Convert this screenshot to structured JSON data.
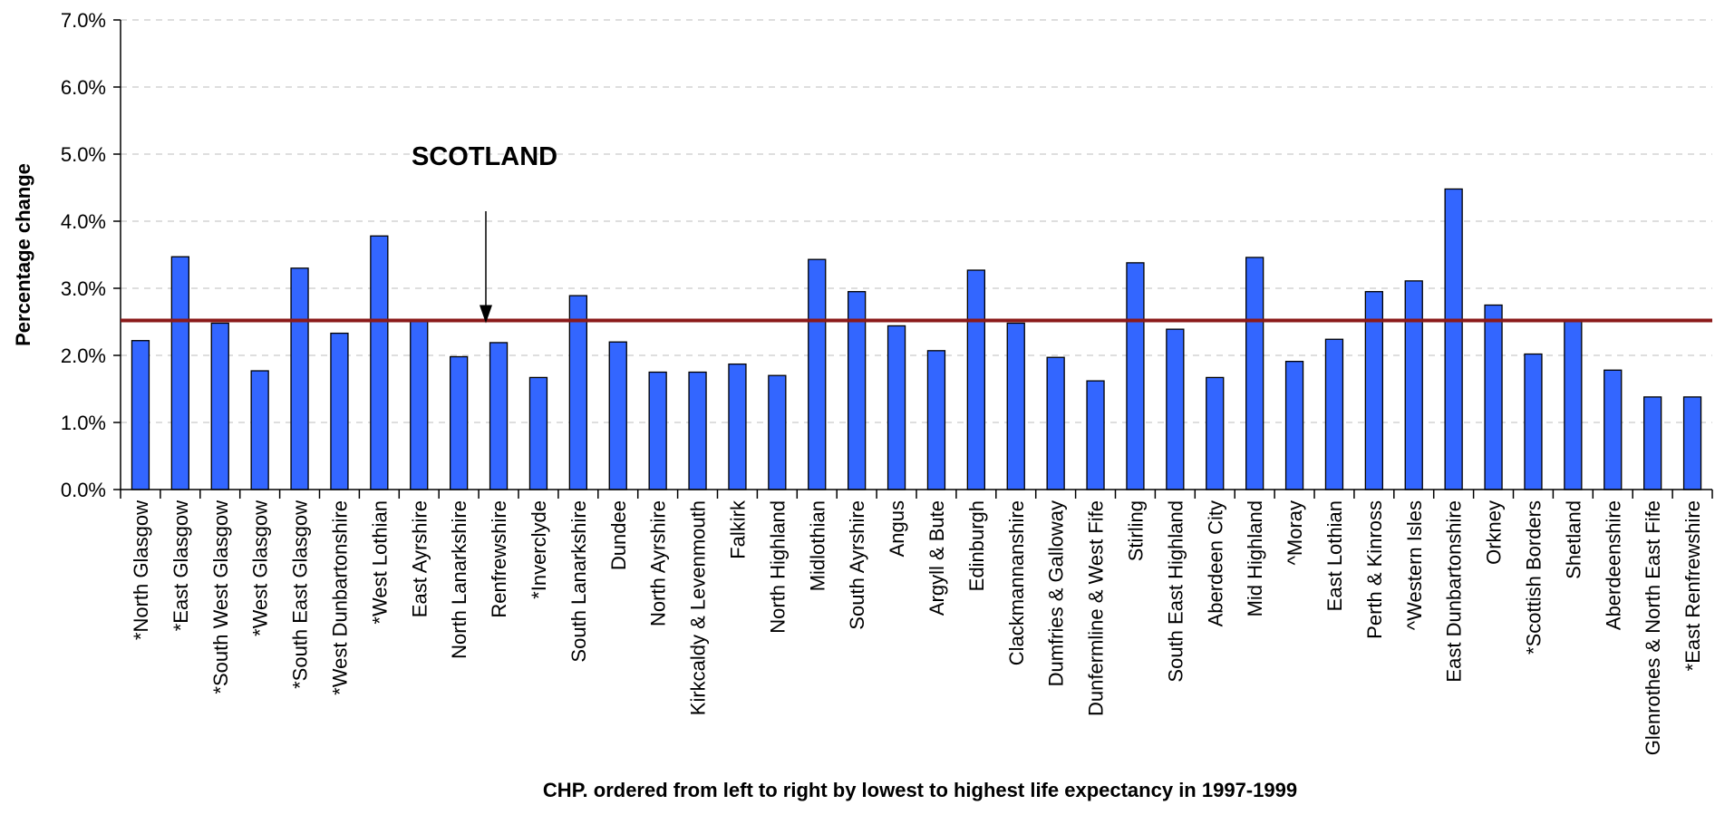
{
  "chart_data": {
    "type": "bar",
    "title": "",
    "xlabel": "CHP. ordered from left to right by lowest to highest life expectancy in 1997-1999",
    "ylabel": "Percentage change",
    "ylim": [
      0,
      7
    ],
    "yticks": [
      "0.0%",
      "1.0%",
      "2.0%",
      "3.0%",
      "4.0%",
      "5.0%",
      "6.0%",
      "7.0%"
    ],
    "grid": "horizontal dashed",
    "categories": [
      "*North Glasgow",
      "*East Glasgow",
      "*South West Glasgow",
      "*West Glasgow",
      "*South East Glasgow",
      "*West Dunbartonshire",
      "*West Lothian",
      "East Ayrshire",
      "North Lanarkshire",
      "Renfrewshire",
      "*Inverclyde",
      "South Lanarkshire",
      "Dundee",
      "North Ayrshire",
      "Kirkcaldy & Levenmouth",
      "Falkirk",
      "North Highland",
      "Midlothian",
      "South Ayrshire",
      "Angus",
      "Argyll & Bute",
      "Edinburgh",
      "Clackmannanshire",
      "Dumfries & Galloway",
      "Dunfermline & West Fife",
      "Stirling",
      "South East Highland",
      "Aberdeen City",
      "Mid Highland",
      "^Moray",
      "East Lothian",
      "Perth & Kinross",
      "^Western Isles",
      "East Dunbartonshire",
      "Orkney",
      "*Scottish Borders",
      "Shetland",
      "Aberdeenshire",
      "Glenrothes & North East Fife",
      "*East Renfrewshire"
    ],
    "values": [
      2.22,
      3.47,
      2.48,
      1.77,
      3.3,
      2.33,
      3.78,
      2.52,
      1.98,
      2.19,
      1.67,
      2.89,
      2.2,
      1.75,
      1.75,
      1.87,
      1.7,
      3.43,
      2.95,
      2.44,
      2.07,
      3.27,
      2.48,
      1.97,
      1.62,
      3.38,
      2.39,
      1.67,
      3.46,
      1.91,
      2.24,
      2.95,
      3.11,
      4.48,
      2.75,
      2.02,
      2.52,
      1.78,
      1.38,
      1.38
    ],
    "bar_color": "#3366ff",
    "reference_line": {
      "label": "SCOTLAND",
      "value": 2.52,
      "color": "#8b1a1a"
    }
  }
}
